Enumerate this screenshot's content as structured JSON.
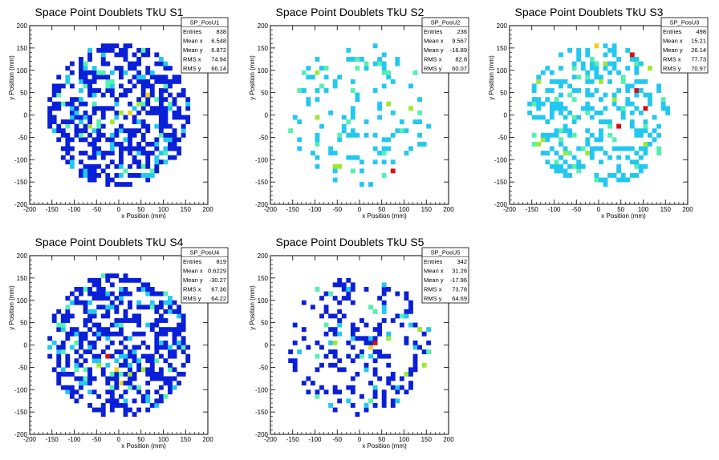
{
  "chart_data": [
    {
      "type": "heatmap",
      "title": "Space Point Doublets TkU S1",
      "xlabel": "x Position (mm)",
      "ylabel": "y Position (mm)",
      "xlim": [
        -200,
        200
      ],
      "ylim": [
        -200,
        200
      ],
      "x_ticks": [
        "-200",
        "-150",
        "-100",
        "-50",
        "0",
        "50",
        "100",
        "150",
        "200"
      ],
      "y_ticks": [
        "-200",
        "-150",
        "-100",
        "-50",
        "0",
        "50",
        "100",
        "150",
        "200"
      ],
      "stats": {
        "name": "SP_PosU1",
        "rows": [
          {
            "label": "Entries",
            "value": "838"
          },
          {
            "label": "Mean x",
            "value": "6.548"
          },
          {
            "label": "Mean y",
            "value": "6.872"
          },
          {
            "label": "RMS x",
            "value": "74.94"
          },
          {
            "label": "RMS y",
            "value": "66.14"
          }
        ]
      },
      "hotspots": [
        {
          "x": 25,
          "y": 0,
          "level": 4
        },
        {
          "x": 65,
          "y": 40,
          "level": 4
        },
        {
          "x": -20,
          "y": -20,
          "level": 3
        },
        {
          "x": -70,
          "y": -30,
          "level": 3
        },
        {
          "x": 45,
          "y": 20,
          "level": 3
        },
        {
          "x": 5,
          "y": 5,
          "level": 3
        },
        {
          "x": 85,
          "y": 30,
          "level": 2
        },
        {
          "x": -45,
          "y": -25,
          "level": 2
        },
        {
          "x": -90,
          "y": -45,
          "level": 2
        },
        {
          "x": -40,
          "y": 90,
          "level": 2
        },
        {
          "x": 100,
          "y": 60,
          "level": 2
        }
      ],
      "colors": [
        "#0a1fd8",
        "#23c8f0",
        "#54f0b0",
        "#9fe830",
        "#f0d020",
        "#d41010"
      ]
    },
    {
      "type": "heatmap",
      "title": "Space Point Doublets TkU S2",
      "xlabel": "x Position (mm)",
      "ylabel": "y Position (mm)",
      "xlim": [
        -200,
        200
      ],
      "ylim": [
        -200,
        200
      ],
      "x_ticks": [
        "-200",
        "-150",
        "-100",
        "-50",
        "0",
        "50",
        "100",
        "150",
        "200"
      ],
      "y_ticks": [
        "-200",
        "-150",
        "-100",
        "-50",
        "0",
        "50",
        "100",
        "150",
        "200"
      ],
      "stats": {
        "name": "SP_PosU2",
        "rows": [
          {
            "label": "Entries",
            "value": "236"
          },
          {
            "label": "Mean x",
            "value": "9.567"
          },
          {
            "label": "Mean y",
            "value": "-16.89"
          },
          {
            "label": "RMS x",
            "value": "82.8"
          },
          {
            "label": "RMS y",
            "value": "60.07"
          }
        ]
      },
      "hotspots": [
        {
          "x": 75,
          "y": -130,
          "level": 5
        },
        {
          "x": -100,
          "y": 90,
          "level": 3
        },
        {
          "x": -60,
          "y": -120,
          "level": 3
        },
        {
          "x": 110,
          "y": 15,
          "level": 3
        },
        {
          "x": 60,
          "y": 20,
          "level": 3
        },
        {
          "x": -20,
          "y": 50,
          "level": 2
        },
        {
          "x": 95,
          "y": -40,
          "level": 2
        }
      ],
      "colors": [
        "#0a1fd8",
        "#23c8f0",
        "#54f0b0",
        "#9fe830",
        "#f0d020",
        "#d41010"
      ]
    },
    {
      "type": "heatmap",
      "title": "Space Point Doublets TkU S3",
      "xlabel": "x Position (mm)",
      "ylabel": "y Position (mm)",
      "xlim": [
        -200,
        200
      ],
      "ylim": [
        -200,
        200
      ],
      "x_ticks": [
        "-200",
        "-150",
        "-100",
        "-50",
        "0",
        "50",
        "100",
        "150",
        "200"
      ],
      "y_ticks": [
        "-200",
        "-150",
        "-100",
        "-50",
        "0",
        "50",
        "100",
        "150",
        "200"
      ],
      "stats": {
        "name": "SP_PosU3",
        "rows": [
          {
            "label": "Entries",
            "value": "498"
          },
          {
            "label": "Mean x",
            "value": "15.21"
          },
          {
            "label": "Mean y",
            "value": "26.14"
          },
          {
            "label": "RMS x",
            "value": "77.73"
          },
          {
            "label": "RMS y",
            "value": "70.97"
          }
        ]
      },
      "hotspots": [
        {
          "x": 45,
          "y": -30,
          "level": 5
        },
        {
          "x": 75,
          "y": 130,
          "level": 5
        },
        {
          "x": 105,
          "y": 15,
          "level": 5
        },
        {
          "x": 85,
          "y": 55,
          "level": 5
        },
        {
          "x": 30,
          "y": 30,
          "level": 3
        },
        {
          "x": -10,
          "y": 150,
          "level": 4
        },
        {
          "x": -140,
          "y": 70,
          "level": 3
        },
        {
          "x": -140,
          "y": -70,
          "level": 3
        },
        {
          "x": -50,
          "y": 80,
          "level": 2
        },
        {
          "x": 100,
          "y": -70,
          "level": 3
        },
        {
          "x": 20,
          "y": -50,
          "level": 2
        }
      ],
      "colors": [
        "#0a1fd8",
        "#23c8f0",
        "#54f0b0",
        "#9fe830",
        "#f0d020",
        "#d41010"
      ]
    },
    {
      "type": "heatmap",
      "title": "Space Point Doublets TkU S4",
      "xlabel": "x Position (mm)",
      "ylabel": "y Position (mm)",
      "xlim": [
        -200,
        200
      ],
      "ylim": [
        -200,
        200
      ],
      "x_ticks": [
        "-200",
        "-150",
        "-100",
        "-50",
        "0",
        "50",
        "100",
        "150",
        "200"
      ],
      "y_ticks": [
        "-200",
        "-150",
        "-100",
        "-50",
        "0",
        "50",
        "100",
        "150",
        "200"
      ],
      "stats": {
        "name": "SP_PosU4",
        "rows": [
          {
            "label": "Entries",
            "value": "819"
          },
          {
            "label": "Mean x",
            "value": "0.6229"
          },
          {
            "label": "Mean y",
            "value": "-30.27"
          },
          {
            "label": "RMS x",
            "value": "67.36"
          },
          {
            "label": "RMS y",
            "value": "64.22"
          }
        ]
      },
      "hotspots": [
        {
          "x": -30,
          "y": -30,
          "level": 5
        },
        {
          "x": -5,
          "y": -55,
          "level": 4
        },
        {
          "x": 0,
          "y": -85,
          "level": 4
        },
        {
          "x": -50,
          "y": -45,
          "level": 3
        },
        {
          "x": 25,
          "y": -70,
          "level": 3
        },
        {
          "x": 55,
          "y": -60,
          "level": 3
        },
        {
          "x": -80,
          "y": -60,
          "level": 2
        },
        {
          "x": 80,
          "y": -40,
          "level": 2
        },
        {
          "x": -20,
          "y": -100,
          "level": 2
        }
      ],
      "colors": [
        "#0a1fd8",
        "#23c8f0",
        "#54f0b0",
        "#9fe830",
        "#f0d020",
        "#d41010"
      ]
    },
    {
      "type": "heatmap",
      "title": "Space Point Doublets TkU S5",
      "xlabel": "x Position (mm)",
      "ylabel": "y Position (mm)",
      "xlim": [
        -200,
        200
      ],
      "ylim": [
        -200,
        200
      ],
      "x_ticks": [
        "-200",
        "-150",
        "-100",
        "-50",
        "0",
        "50",
        "100",
        "150",
        "200"
      ],
      "y_ticks": [
        "-200",
        "-150",
        "-100",
        "-50",
        "0",
        "50",
        "100",
        "150",
        "200"
      ],
      "stats": {
        "name": "SP_PosU5",
        "rows": [
          {
            "label": "Entries",
            "value": "342"
          },
          {
            "label": "Mean x",
            "value": "31.28"
          },
          {
            "label": "Mean y",
            "value": "-17.96"
          },
          {
            "label": "RMS x",
            "value": "73.78"
          },
          {
            "label": "RMS y",
            "value": "64.69"
          }
        ]
      },
      "hotspots": [
        {
          "x": 35,
          "y": 0,
          "level": 5
        },
        {
          "x": 25,
          "y": -5,
          "level": 4
        },
        {
          "x": 60,
          "y": 10,
          "level": 3
        },
        {
          "x": 130,
          "y": 30,
          "level": 3
        },
        {
          "x": 140,
          "y": -50,
          "level": 3
        },
        {
          "x": -55,
          "y": 5,
          "level": 3
        },
        {
          "x": 100,
          "y": -70,
          "level": 3
        },
        {
          "x": 0,
          "y": -30,
          "level": 2
        }
      ],
      "colors": [
        "#0a1fd8",
        "#23c8f0",
        "#54f0b0",
        "#9fe830",
        "#f0d020",
        "#d41010"
      ]
    }
  ]
}
